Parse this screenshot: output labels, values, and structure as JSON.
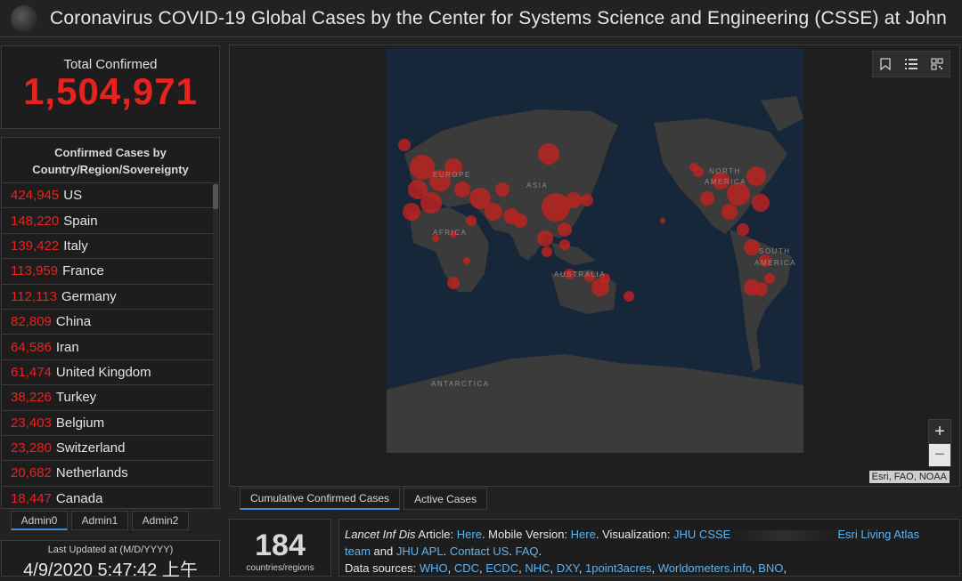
{
  "header": {
    "title": "Coronavirus COVID-19 Global Cases by the Center for Systems Science and Engineering (CSSE) at John"
  },
  "total": {
    "label": "Total Confirmed",
    "value": "1,504,971"
  },
  "list": {
    "title_line1": "Confirmed Cases by",
    "title_line2": "Country/Region/Sovereignty",
    "rows": [
      {
        "num": "424,945",
        "name": "US"
      },
      {
        "num": "148,220",
        "name": "Spain"
      },
      {
        "num": "139,422",
        "name": "Italy"
      },
      {
        "num": "113,959",
        "name": "France"
      },
      {
        "num": "112,113",
        "name": "Germany"
      },
      {
        "num": "82,809",
        "name": "China"
      },
      {
        "num": "64,586",
        "name": "Iran"
      },
      {
        "num": "61,474",
        "name": "United Kingdom"
      },
      {
        "num": "38,226",
        "name": "Turkey"
      },
      {
        "num": "23,403",
        "name": "Belgium"
      },
      {
        "num": "23,280",
        "name": "Switzerland"
      },
      {
        "num": "20,682",
        "name": "Netherlands"
      },
      {
        "num": "18,447",
        "name": "Canada"
      }
    ]
  },
  "admin_tabs": [
    "Admin0",
    "Admin1",
    "Admin2"
  ],
  "updated": {
    "label": "Last Updated at (M/D/YYYY)",
    "value": "4/9/2020 5:47:42 上午"
  },
  "map": {
    "labels": {
      "europe": "EUROPE",
      "asia": "ASIA",
      "africa": "AFRICA",
      "australia": "AUSTRALIA",
      "north_america_1": "NORTH",
      "north_america_2": "AMERICA",
      "south_america_1": "SOUTH",
      "south_america_2": "AMERICA",
      "antarctica": "ANTARCTICA"
    },
    "attribution": "Esri, FAO, NOAA",
    "zoom_in": "+",
    "zoom_out": "−",
    "tabs": [
      "Cumulative Confirmed Cases",
      "Active Cases"
    ]
  },
  "countries": {
    "value": "184",
    "label": "countries/regions"
  },
  "info": {
    "line1_italic": "Lancet Inf Dis",
    "line1_a": " Article: ",
    "here1": "Here",
    "line1_b": ". Mobile Version: ",
    "here2": "Here",
    "line1_c": ". Visualization: ",
    "jhu_csse": "JHU CSSE",
    "esri": "Esri Living Atlas",
    "team": "team",
    "and": " and ",
    "jhu_apl": "JHU APL",
    "contact": "Contact US",
    "faq": "FAQ",
    "sources_label": "Data sources: ",
    "sources": [
      "WHO",
      "CDC",
      "ECDC",
      "NHC",
      "DXY",
      "1point3acres",
      "Worldometers.info",
      "BNO"
    ]
  },
  "colors": {
    "accent_red": "#e8231f",
    "link_blue": "#5fb3f0",
    "tab_underline": "#3d8fd6",
    "ocean": "#1a2a3a",
    "land": "#3a3a3a"
  },
  "icons": [
    "bookmark-icon",
    "list-icon",
    "qr-code-icon"
  ]
}
